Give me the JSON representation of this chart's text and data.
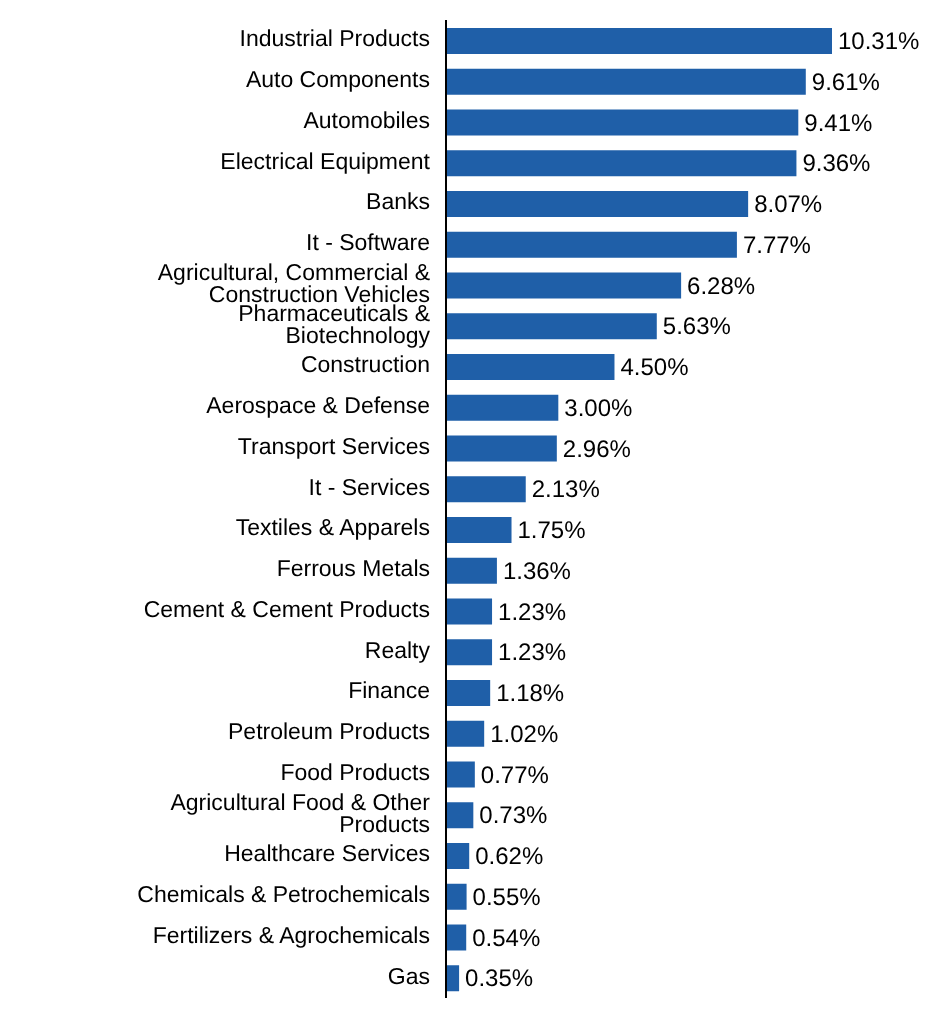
{
  "chart_data": {
    "type": "bar",
    "orientation": "horizontal",
    "categories": [
      "Industrial Products",
      "Auto Components",
      "Automobiles",
      "Electrical Equipment",
      "Banks",
      "It - Software",
      "Agricultural, Commercial & Construction Vehicles",
      "Pharmaceuticals & Biotechnology",
      "Construction",
      "Aerospace & Defense",
      "Transport Services",
      "It - Services",
      "Textiles & Apparels",
      "Ferrous Metals",
      "Cement & Cement Products",
      "Realty",
      "Finance",
      "Petroleum Products",
      "Food Products",
      "Agricultural Food & Other Products",
      "Healthcare Services",
      "Chemicals & Petrochemicals",
      "Fertilizers & Agrochemicals",
      "Gas"
    ],
    "values": [
      10.31,
      9.61,
      9.41,
      9.36,
      8.07,
      7.77,
      6.28,
      5.63,
      4.5,
      3.0,
      2.96,
      2.13,
      1.75,
      1.36,
      1.23,
      1.23,
      1.18,
      1.02,
      0.77,
      0.73,
      0.62,
      0.55,
      0.54,
      0.35
    ],
    "value_labels": [
      "10.31%",
      "9.61%",
      "9.41%",
      "9.36%",
      "8.07%",
      "7.77%",
      "6.28%",
      "5.63%",
      "4.50%",
      "3.00%",
      "2.96%",
      "2.13%",
      "1.75%",
      "1.36%",
      "1.23%",
      "1.23%",
      "1.18%",
      "1.02%",
      "0.77%",
      "0.73%",
      "0.62%",
      "0.55%",
      "0.54%",
      "0.35%"
    ],
    "color": "#1f5fa8"
  }
}
